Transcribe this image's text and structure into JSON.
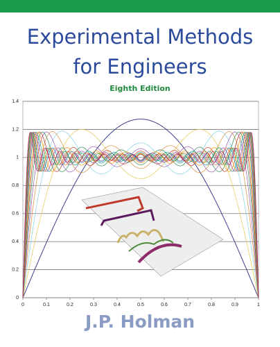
{
  "header": {
    "title_line1": "Experimental Methods",
    "title_line2": "for Engineers",
    "edition": "Eighth Edition"
  },
  "figure": {
    "xlim": [
      0,
      1
    ],
    "ylim": [
      0,
      1.4
    ],
    "xticks": [
      0,
      0.1,
      0.2,
      0.3,
      0.4,
      0.5,
      0.6,
      0.7,
      0.8,
      0.9,
      1
    ],
    "yticks": [
      0,
      0.2,
      0.4,
      0.6,
      0.8,
      1,
      1.2,
      1.4
    ]
  },
  "author": "J.P. Holman"
}
